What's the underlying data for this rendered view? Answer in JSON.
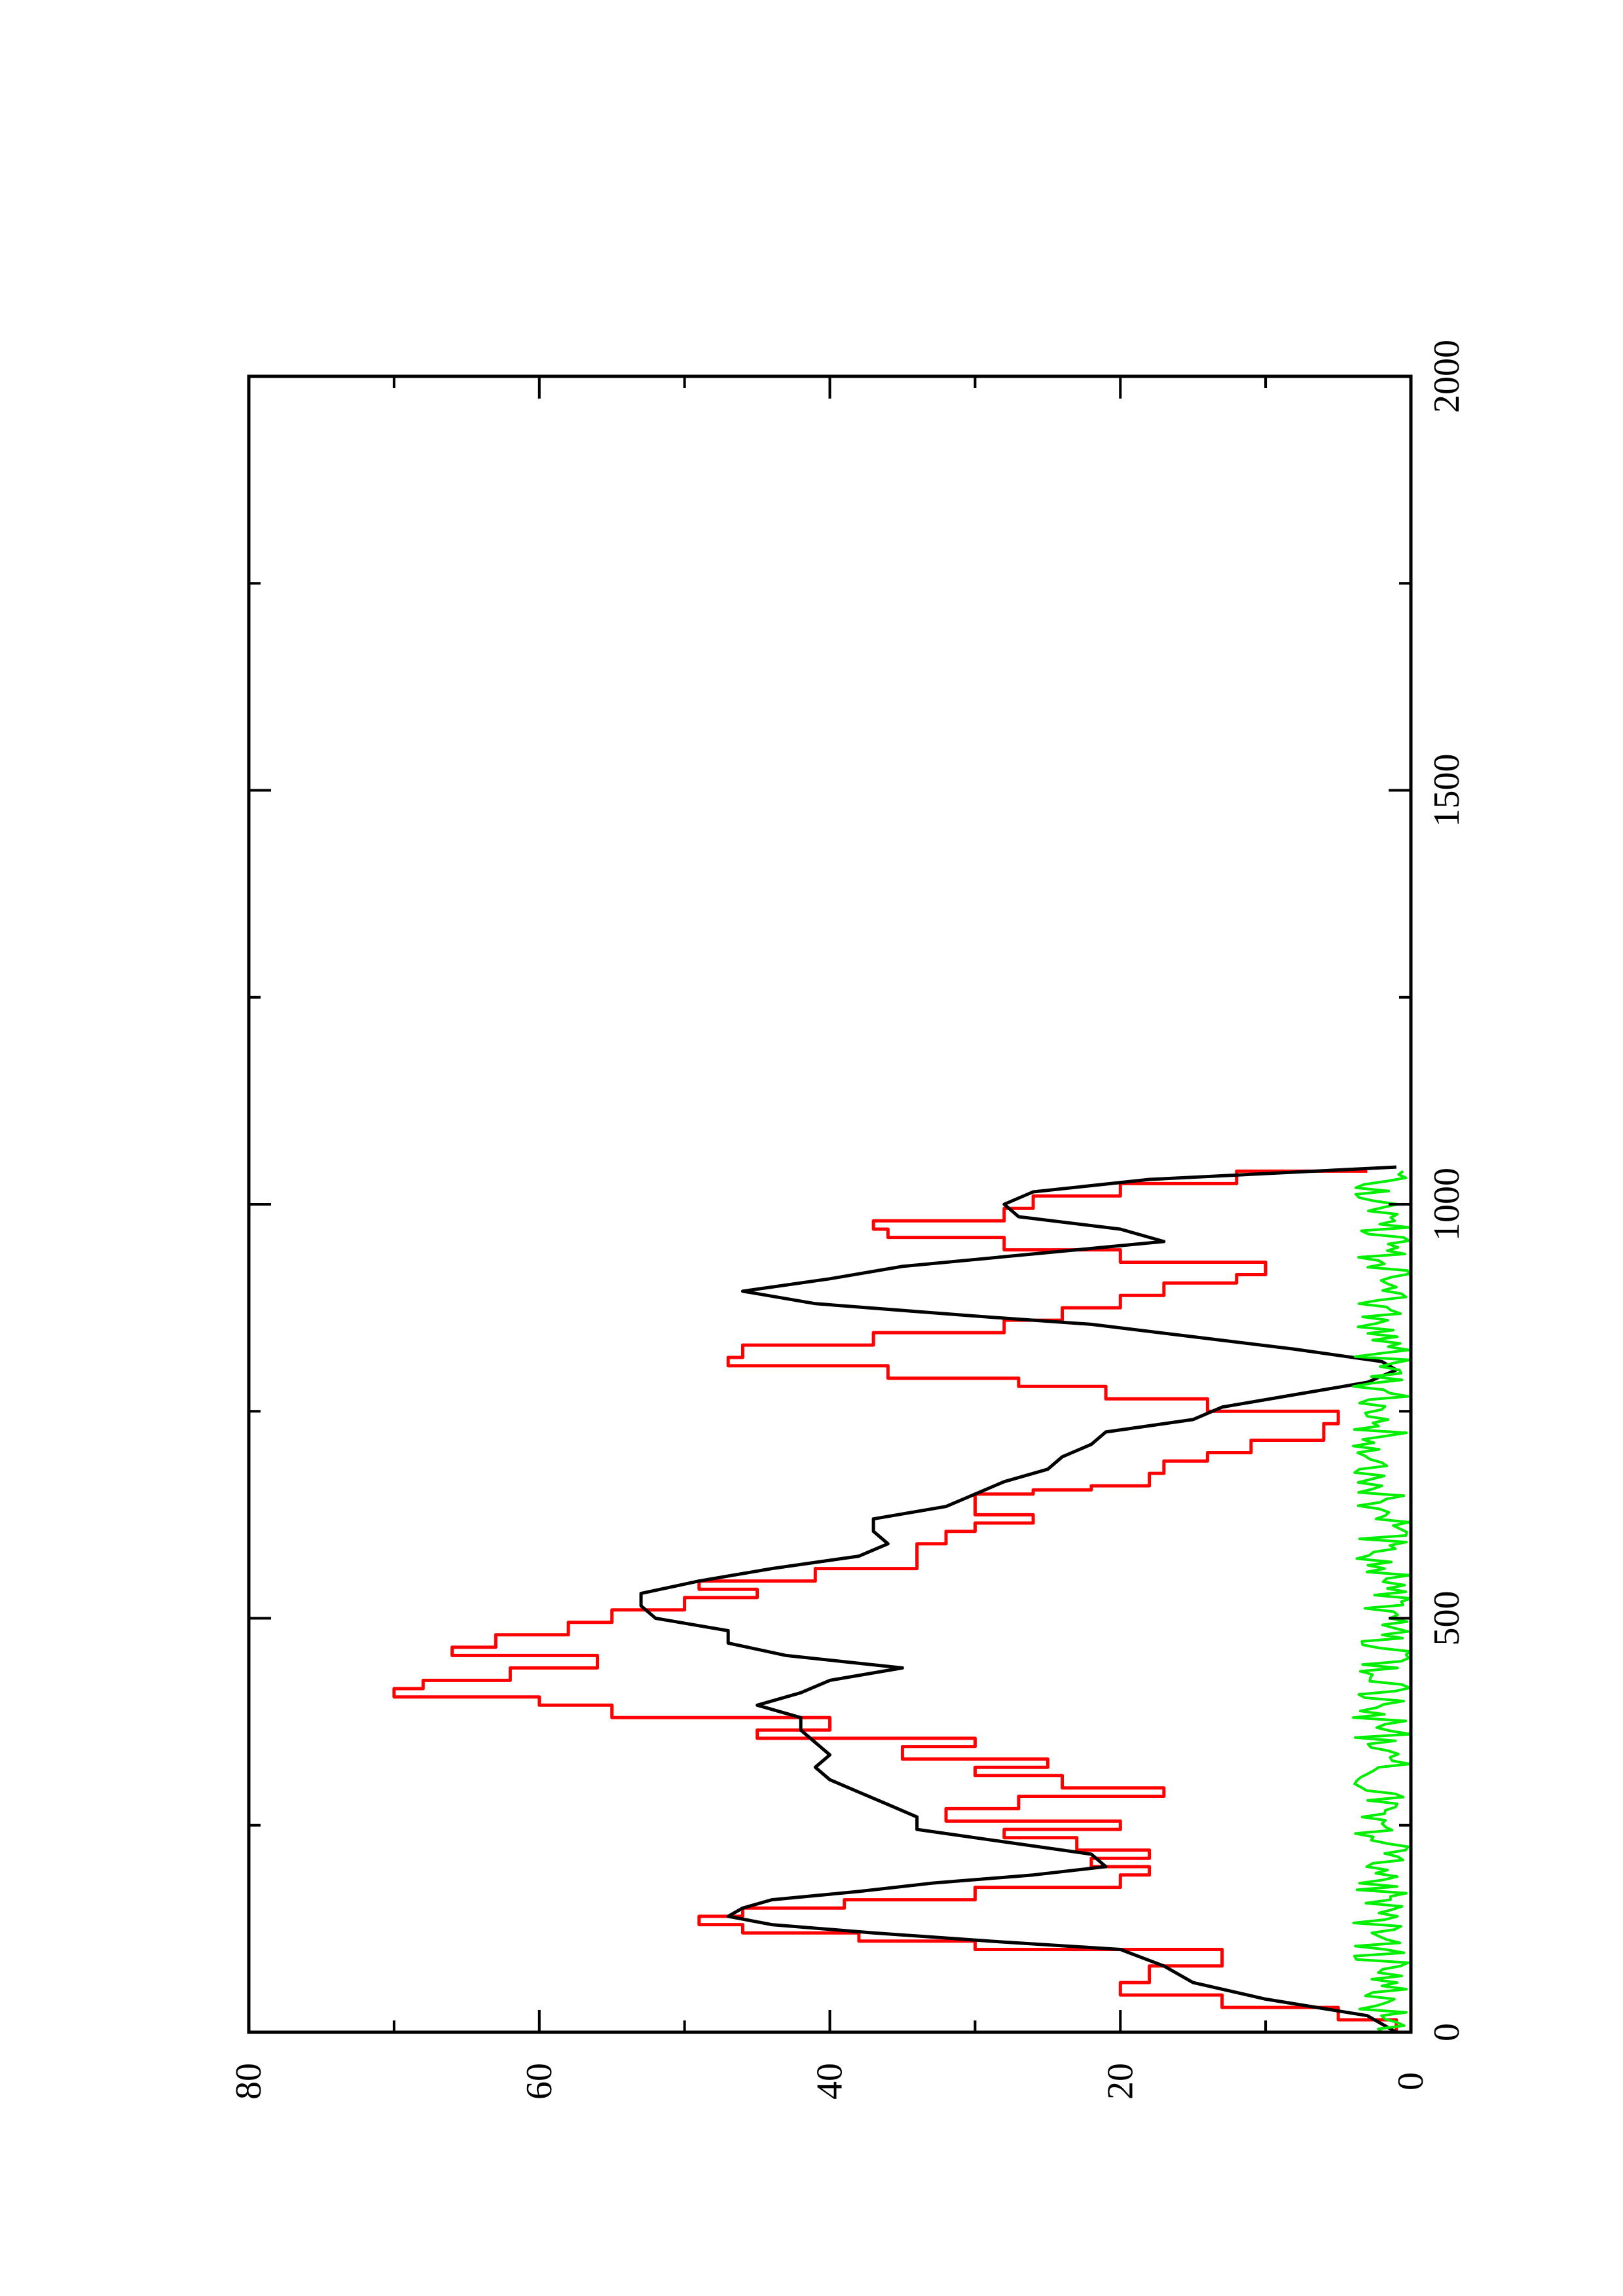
{
  "chart_data": {
    "type": "line",
    "orientation": "page rotated 90 degrees counter-clockwise",
    "xlim": [
      0,
      2000
    ],
    "ylim": [
      0,
      80
    ],
    "x_ticks": [
      0,
      500,
      1000,
      1500,
      2000
    ],
    "x_minor_ticks": [
      250,
      750,
      1250,
      1750
    ],
    "y_ticks": [
      0,
      20,
      40,
      60,
      80
    ],
    "y_minor_ticks": [
      10,
      30,
      50,
      70
    ],
    "x_tick_labels": [
      "0",
      "500",
      "1000",
      "1500",
      "2000"
    ],
    "y_tick_labels": [
      "0",
      "20",
      "40",
      "60",
      "80"
    ],
    "title": "",
    "xlabel": "",
    "ylabel": "",
    "grid": false,
    "legend": "none",
    "series": [
      {
        "color": "#ff0000",
        "style": "step",
        "x": [
          0,
          15,
          30,
          45,
          60,
          80,
          100,
          110,
          120,
          130,
          140,
          150,
          160,
          175,
          190,
          200,
          210,
          220,
          235,
          245,
          255,
          270,
          285,
          295,
          310,
          320,
          330,
          345,
          355,
          365,
          380,
          395,
          405,
          415,
          425,
          440,
          455,
          465,
          480,
          495,
          510,
          525,
          535,
          545,
          560,
          575,
          590,
          605,
          615,
          625,
          640,
          650,
          655,
          660,
          675,
          690,
          700,
          715,
          735,
          750,
          765,
          780,
          790,
          805,
          815,
          830,
          845,
          860,
          875,
          890,
          905,
          915,
          930,
          945,
          960,
          970,
          980,
          995,
          1010,
          1025,
          1040
        ],
        "y": [
          1,
          5,
          13,
          20,
          18,
          13,
          30,
          38,
          46,
          49,
          46,
          39,
          30,
          20,
          18,
          22,
          18,
          23,
          28,
          20,
          32,
          27,
          17,
          24,
          30,
          25,
          35,
          30,
          45,
          40,
          55,
          60,
          70,
          68,
          62,
          56,
          66,
          63,
          58,
          55,
          50,
          45,
          49,
          41,
          34,
          34,
          32,
          30,
          26,
          30,
          30,
          26,
          22,
          18,
          17,
          14,
          11,
          6,
          5,
          14,
          21,
          27,
          36,
          47,
          46,
          37,
          28,
          24,
          20,
          17,
          12,
          10,
          20,
          28,
          36,
          37,
          28,
          26,
          20,
          12,
          3
        ],
        "note": "step-shaped series"
      },
      {
        "color": "#000000",
        "style": "line",
        "x": [
          0,
          20,
          40,
          60,
          80,
          100,
          110,
          120,
          130,
          140,
          150,
          160,
          170,
          180,
          190,
          200,
          215,
          230,
          245,
          260,
          275,
          290,
          305,
          320,
          335,
          350,
          365,
          380,
          395,
          410,
          425,
          440,
          455,
          470,
          485,
          500,
          515,
          530,
          545,
          560,
          575,
          590,
          605,
          620,
          635,
          650,
          665,
          680,
          695,
          710,
          725,
          740,
          755,
          770,
          785,
          800,
          810,
          825,
          840,
          855,
          865,
          880,
          895,
          910,
          925,
          940,
          955,
          970,
          985,
          1000,
          1015,
          1030,
          1045
        ],
        "y": [
          1,
          3,
          10,
          15,
          17,
          20,
          29,
          37,
          44,
          47,
          46,
          44,
          38,
          33,
          26,
          21,
          22,
          28,
          34,
          34,
          36,
          38,
          40,
          41,
          40,
          41,
          42,
          42,
          45,
          42,
          40,
          35,
          43,
          47,
          47,
          52,
          53,
          53,
          49,
          44,
          38,
          36,
          37,
          37,
          32,
          30,
          28,
          25,
          24,
          22,
          21,
          15,
          13,
          8,
          3,
          1,
          2,
          8,
          15,
          22,
          30,
          41,
          46,
          40,
          35,
          26,
          17,
          20,
          27,
          28,
          26,
          18,
          1
        ]
      },
      {
        "color": "#00ee00",
        "style": "noisy line",
        "x_start": 0,
        "x_end": 1040,
        "y_range": [
          0,
          4
        ],
        "note": "noisy near-zero signal"
      }
    ]
  }
}
